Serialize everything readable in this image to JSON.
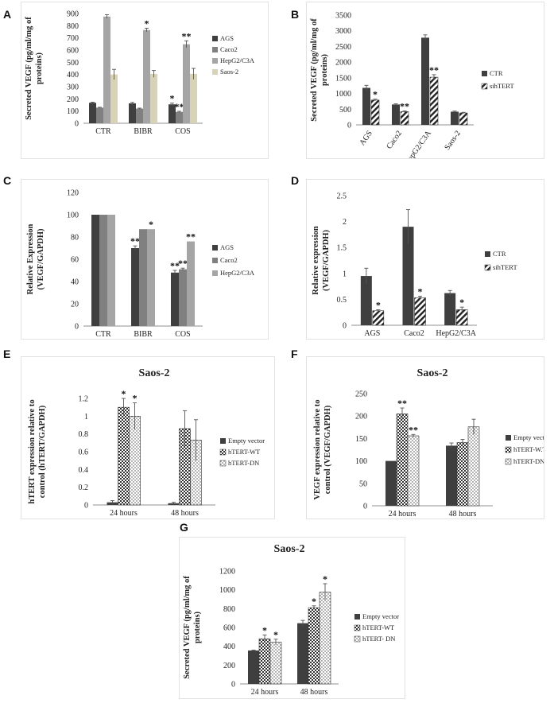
{
  "colors": {
    "dark": "#3f3f3f",
    "gray": "#a5a5a5",
    "midgray": "#808080",
    "tan": "#d8d2b6",
    "axis": "#909090",
    "text": "#222222"
  },
  "panel_labels": [
    "A",
    "B",
    "C",
    "D",
    "E",
    "F",
    "G"
  ],
  "chart_data": [
    {
      "id": "A",
      "type": "bar",
      "title": "",
      "xlabel": "",
      "ylabel": "Secreted VEGF (pg/ml/mg of proteins)",
      "ylabel_lines": [
        "Secreted VEGF (pg/ml/mg of",
        "proteins)"
      ],
      "ylim": [
        0,
        900
      ],
      "yticks": [
        "0",
        "100",
        "200",
        "300",
        "400",
        "500",
        "600",
        "700",
        "800",
        "900"
      ],
      "categories": [
        "CTR",
        "BIBR",
        "COS"
      ],
      "series": [
        {
          "name": "AGS",
          "color": "dark",
          "values": [
            168,
            163,
            155
          ],
          "errors": [
            5,
            8,
            10
          ],
          "marks": [
            "",
            "",
            "*"
          ]
        },
        {
          "name": "Caco2",
          "color": "midgray",
          "values": [
            128,
            120,
            93
          ],
          "errors": [
            3,
            4,
            5
          ],
          "marks": [
            "",
            "",
            "**"
          ]
        },
        {
          "name": "HepG2/C3A",
          "color": "gray",
          "values": [
            875,
            765,
            648
          ],
          "errors": [
            15,
            15,
            28
          ],
          "marks": [
            "",
            "*",
            "**"
          ]
        },
        {
          "name": "Saos-2",
          "color": "tan",
          "values": [
            400,
            405,
            405
          ],
          "errors": [
            42,
            28,
            45
          ],
          "marks": [
            "",
            "",
            ""
          ]
        }
      ]
    },
    {
      "id": "B",
      "type": "bar",
      "title": "",
      "xlabel": "",
      "ylabel": "Secreted VEGF (pg/ml/mg of proteins)",
      "ylabel_lines": [
        "Secreted VEGF (pg/ml/mg of",
        "proteins)"
      ],
      "ylim": [
        0,
        3500
      ],
      "yticks": [
        "0",
        "500",
        "1000",
        "1500",
        "2000",
        "2500",
        "3000",
        "3500"
      ],
      "categories": [
        "AGS",
        "Caco2",
        "HepG2/C3A",
        "Saos-2"
      ],
      "rotated_xticks": true,
      "series": [
        {
          "name": "CTR",
          "color": "dark",
          "values": [
            1180,
            650,
            2780,
            420
          ],
          "errors": [
            80,
            20,
            90,
            20
          ],
          "marks": [
            "",
            "",
            "",
            ""
          ]
        },
        {
          "name": "sihTERT",
          "color": "hatch",
          "values": [
            790,
            420,
            1520,
            380
          ],
          "errors": [
            30,
            25,
            80,
            20
          ],
          "marks": [
            "*",
            "**",
            "**",
            ""
          ]
        }
      ]
    },
    {
      "id": "C",
      "type": "bar",
      "title": "",
      "xlabel": "",
      "ylabel": "Relative Expression (VEGF/GAPDH)",
      "ylabel_lines": [
        "Relative Expression",
        "(VEGF/GAPDH)"
      ],
      "ylim": [
        0,
        120
      ],
      "yticks": [
        "0",
        "20",
        "40",
        "60",
        "80",
        "100",
        "120"
      ],
      "categories": [
        "CTR",
        "BIBR",
        "COS"
      ],
      "series": [
        {
          "name": "AGS",
          "color": "dark",
          "values": [
            100,
            70,
            48
          ],
          "errors": [
            0,
            2,
            2
          ],
          "marks": [
            "",
            "**",
            "**"
          ]
        },
        {
          "name": "Caco2",
          "color": "midgray",
          "values": [
            100,
            87,
            51
          ],
          "errors": [
            0,
            0,
            1
          ],
          "marks": [
            "",
            "",
            "**"
          ]
        },
        {
          "name": "HepG2/C3A",
          "color": "gray",
          "values": [
            100,
            87,
            76
          ],
          "errors": [
            0,
            0,
            0
          ],
          "marks": [
            "",
            "*",
            "**"
          ]
        }
      ]
    },
    {
      "id": "D",
      "type": "bar",
      "title": "",
      "xlabel": "",
      "ylabel": "Relative expression (VEGF/GAPDH)",
      "ylabel_lines": [
        "Relative expression",
        "(VEGF/GAPDH)"
      ],
      "ylim": [
        0,
        2.5
      ],
      "yticks": [
        "0",
        "0.5",
        "1",
        "1.5",
        "2",
        "2.5"
      ],
      "categories": [
        "AGS",
        "Caco2",
        "HepG2/C3A"
      ],
      "series": [
        {
          "name": "CTR",
          "color": "dark",
          "values": [
            0.95,
            1.9,
            0.62
          ],
          "errors": [
            0.15,
            0.33,
            0.05
          ],
          "marks": [
            "",
            "",
            ""
          ]
        },
        {
          "name": "sihTERT",
          "color": "hatch",
          "values": [
            0.28,
            0.53,
            0.3
          ],
          "errors": [
            0.02,
            0.03,
            0.05
          ],
          "marks": [
            "*",
            "*",
            "*"
          ]
        }
      ]
    },
    {
      "id": "E",
      "type": "bar",
      "title": "Saos-2",
      "xlabel": "",
      "ylabel": "hTERT expression relative to control (hTERT/GAPDH)",
      "ylabel_lines": [
        "hTERT expression relative to",
        "control (hTERT/GAPDH)"
      ],
      "ylim": [
        0,
        1.2
      ],
      "yticks": [
        "0",
        "0.2",
        "0.4",
        "0.6",
        "0.8",
        "1",
        "1.2"
      ],
      "categories": [
        "24 hours",
        "48 hours"
      ],
      "series": [
        {
          "name": "Empty vector",
          "color": "dark",
          "values": [
            0.03,
            0.02
          ],
          "errors": [
            0.02,
            0.01
          ],
          "marks": [
            "",
            ""
          ]
        },
        {
          "name": "hTERT-WT",
          "color": "check",
          "values": [
            1.1,
            0.86
          ],
          "errors": [
            0.1,
            0.2
          ],
          "marks": [
            "*",
            ""
          ]
        },
        {
          "name": "hTERT-DN",
          "color": "dots",
          "values": [
            1.0,
            0.73
          ],
          "errors": [
            0.15,
            0.23
          ],
          "marks": [
            "*",
            ""
          ]
        }
      ]
    },
    {
      "id": "F",
      "type": "bar",
      "title": "Saos-2",
      "xlabel": "",
      "ylabel": "VEGF expression relative to control (VEGF/GAPDH)",
      "ylabel_lines": [
        "VEGF expression relative to",
        "control (VEGF/GAPDH)"
      ],
      "ylim": [
        0,
        250
      ],
      "yticks": [
        "0",
        "50",
        "100",
        "150",
        "200",
        "250"
      ],
      "categories": [
        "24 hours",
        "48 hours"
      ],
      "series": [
        {
          "name": "Empty vector",
          "color": "dark",
          "values": [
            100,
            134
          ],
          "errors": [
            0,
            6
          ],
          "marks": [
            "",
            ""
          ]
        },
        {
          "name": "hTERT-W.T",
          "color": "check",
          "values": [
            205,
            141
          ],
          "errors": [
            13,
            7
          ],
          "marks": [
            "**",
            ""
          ]
        },
        {
          "name": "hTERT-DN",
          "color": "dots",
          "values": [
            156,
            176
          ],
          "errors": [
            3,
            17
          ],
          "marks": [
            "**",
            ""
          ]
        }
      ]
    },
    {
      "id": "G",
      "type": "bar",
      "title": "Saos-2",
      "xlabel": "",
      "ylabel": "Secreted VEGF (pg/ml/mg of proteins)",
      "ylabel_lines": [
        "Secreted VEGF (pg/ml/mg of",
        "proteins)"
      ],
      "ylim": [
        0,
        1200
      ],
      "yticks": [
        "0",
        "200",
        "400",
        "600",
        "800",
        "1000",
        "1200"
      ],
      "categories": [
        "24 hours",
        "48 hours"
      ],
      "series": [
        {
          "name": "Empty vector",
          "color": "dark",
          "values": [
            355,
            645
          ],
          "errors": [
            5,
            30
          ],
          "marks": [
            "",
            ""
          ]
        },
        {
          "name": "hTERT-WT",
          "color": "check",
          "values": [
            480,
            810
          ],
          "errors": [
            40,
            20
          ],
          "marks": [
            "*",
            "*"
          ]
        },
        {
          "name": "hTERT- DN",
          "color": "dots",
          "values": [
            445,
            975
          ],
          "errors": [
            30,
            90
          ],
          "marks": [
            "*",
            "*"
          ]
        }
      ]
    }
  ]
}
